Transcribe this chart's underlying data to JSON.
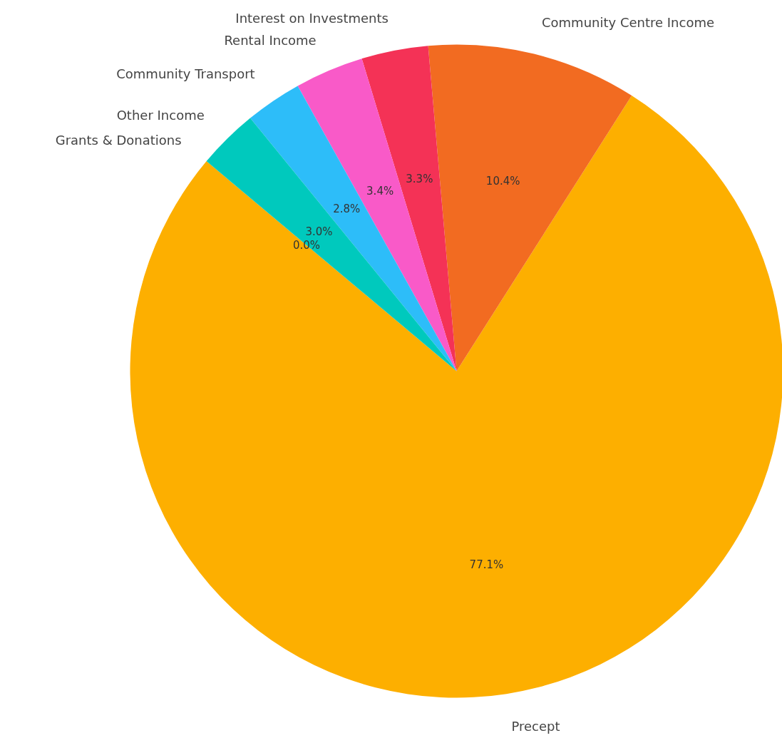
{
  "chart_data": {
    "type": "pie",
    "categories": [
      "Precept",
      "Community Centre Income",
      "Interest on Investments",
      "Rental Income",
      "Community Transport",
      "Other Income",
      "Grants & Donations"
    ],
    "values": [
      77.1,
      10.4,
      3.3,
      3.4,
      2.8,
      3.0,
      0.0
    ],
    "colors": [
      "#fdaf00",
      "#f26b21",
      "#f43256",
      "#f95ac8",
      "#2dbdf9",
      "#00c9bd",
      "#8e5fc2"
    ],
    "value_labels": [
      "77.1%",
      "10.4%",
      "3.3%",
      "3.4%",
      "2.8%",
      "3.0%",
      "0.0%"
    ]
  }
}
